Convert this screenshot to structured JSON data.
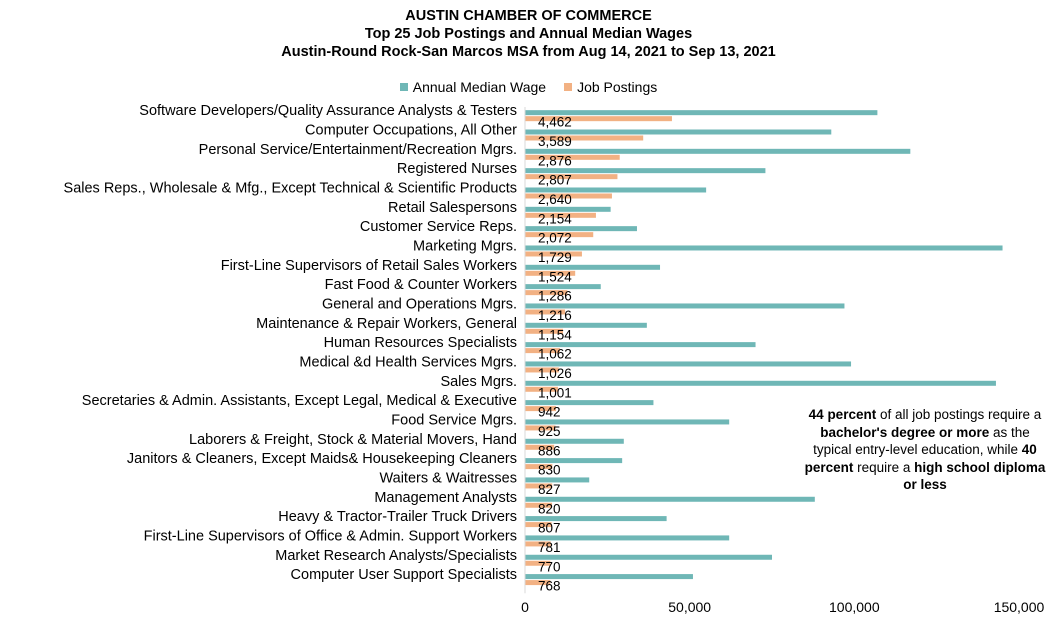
{
  "colors": {
    "wage": "#6fb7b6",
    "postings": "#f2b183"
  },
  "chart_data": {
    "type": "bar",
    "orientation": "horizontal",
    "title": [
      "AUSTIN CHAMBER OF COMMERCE",
      "Top 25 Job Postings and Annual Median Wages",
      "Austin-Round Rock-San Marcos MSA from Aug 14, 2021 to Sep 13, 2021"
    ],
    "categories": [
      "Software Developers/Quality Assurance Analysts & Testers",
      "Computer Occupations, All Other",
      "Personal Service/Entertainment/Recreation Mgrs.",
      "Registered Nurses",
      "Sales Reps., Wholesale & Mfg., Except Technical & Scientific Products",
      "Retail Salespersons",
      "Customer Service Reps.",
      "Marketing Mgrs.",
      "First-Line Supervisors of Retail Sales Workers",
      "Fast Food & Counter Workers",
      "General and Operations Mgrs.",
      "Maintenance & Repair Workers, General",
      "Human Resources Specialists",
      "Medical &d Health Services Mgrs.",
      "Sales Mgrs.",
      "Secretaries & Admin. Assistants, Except Legal, Medical & Executive",
      "Food Service Mgrs.",
      "Laborers & Freight, Stock & Material Movers, Hand",
      "Janitors & Cleaners, Except Maids& Housekeeping Cleaners",
      "Waiters & Waitresses",
      "Management Analysts",
      "Heavy & Tractor-Trailer Truck Drivers",
      "First-Line Supervisors of Office & Admin. Support Workers",
      "Market Research Analysts/Specialists",
      "Computer User Support Specialists"
    ],
    "series": [
      {
        "name": "Annual Median Wage",
        "values": [
          107000,
          93000,
          117000,
          73000,
          55000,
          26000,
          34000,
          145000,
          41000,
          23000,
          97000,
          37000,
          70000,
          99000,
          143000,
          39000,
          62000,
          30000,
          29500,
          19500,
          88000,
          43000,
          62000,
          75000,
          51000
        ]
      },
      {
        "name": "Job Postings",
        "values": [
          4462,
          3589,
          2876,
          2807,
          2640,
          2154,
          2072,
          1729,
          1524,
          1286,
          1216,
          1154,
          1062,
          1026,
          1001,
          942,
          925,
          886,
          830,
          827,
          820,
          807,
          781,
          770,
          768
        ],
        "labels": [
          "4,462",
          "3,589",
          "2,876",
          "2,807",
          "2,640",
          "2,154",
          "2,072",
          "1,729",
          "1,524",
          "1,286",
          "1,216",
          "1,154",
          "1,062",
          "1,026",
          "1,001",
          "942",
          "925",
          "886",
          "830",
          "827",
          "820",
          "807",
          "781",
          "770",
          "768"
        ]
      }
    ],
    "xlim": [
      0,
      150000
    ],
    "xticks": [
      0,
      50000,
      100000,
      150000
    ],
    "xtick_labels": [
      "0",
      "50,000",
      "100,000",
      "150,000"
    ],
    "grid": false,
    "legend": "top"
  },
  "callout": {
    "p1": "44 percent",
    "p2": " of all job postings require a ",
    "p3": "bachelor's degree or more",
    "p4": " as the typical entry-level education, while ",
    "p5": "40 percent",
    "p6": " require a ",
    "p7": "high school diploma or less"
  }
}
